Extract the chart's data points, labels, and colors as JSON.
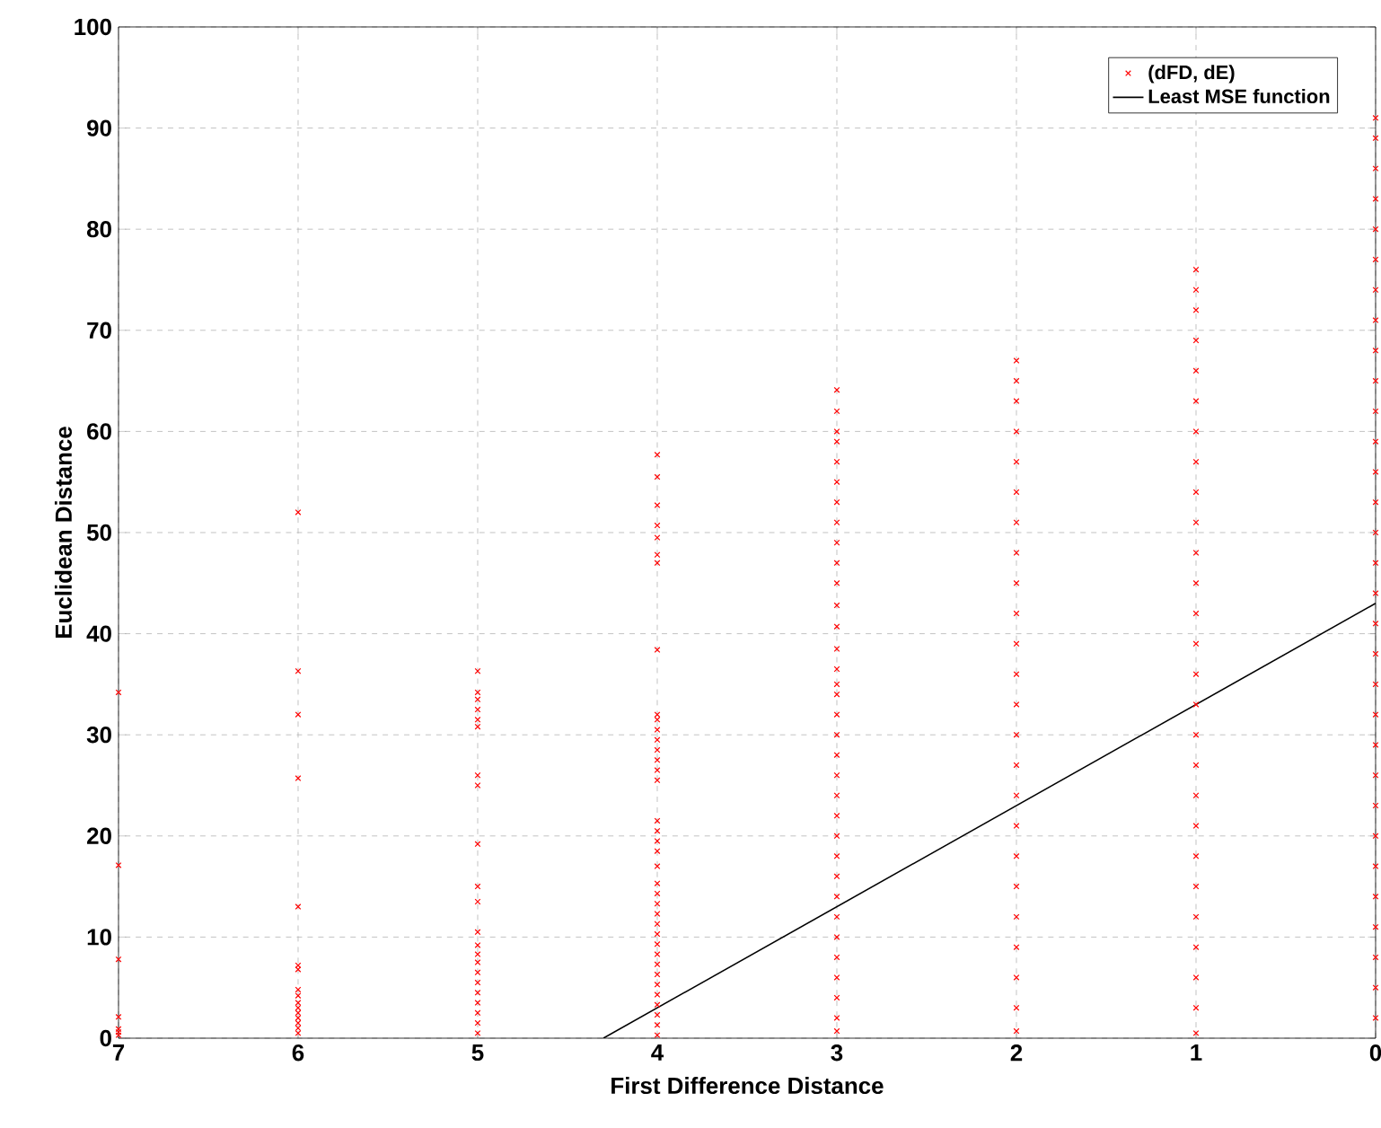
{
  "chart_data": {
    "type": "scatter",
    "xlabel": "First Difference Distance",
    "ylabel": "Euclidean Distance",
    "xlim": [
      7,
      0
    ],
    "ylim": [
      0,
      100
    ],
    "xticks": [
      7,
      6,
      5,
      4,
      3,
      2,
      1,
      0
    ],
    "yticks": [
      0,
      10,
      20,
      30,
      40,
      50,
      60,
      70,
      80,
      90,
      100
    ],
    "grid": true,
    "legend": "top right",
    "series": [
      {
        "name": "(dFD, dE)",
        "marker": "cross",
        "color": "#ff0000",
        "x": [
          7,
          7,
          7,
          7,
          7,
          7,
          7,
          6,
          6,
          6,
          6,
          6,
          6,
          6,
          6,
          6,
          6,
          6,
          6,
          6,
          6,
          6,
          6,
          5,
          5,
          5,
          5,
          5,
          5,
          5,
          5,
          5,
          5,
          5,
          5,
          5,
          5,
          5,
          5,
          5,
          5,
          5,
          5,
          5,
          5,
          4,
          4,
          4,
          4,
          4,
          4,
          4,
          4,
          4,
          4,
          4,
          4,
          4,
          4,
          4,
          4,
          4,
          4,
          4,
          4,
          4,
          4,
          4,
          4,
          4,
          4,
          4,
          4,
          4,
          4,
          4,
          4,
          4,
          4,
          4,
          4,
          4,
          3,
          3,
          3,
          3,
          3,
          3,
          3,
          3,
          3,
          3,
          3,
          3,
          3,
          3,
          3,
          3,
          3,
          3,
          3,
          3,
          3,
          3,
          3,
          3,
          3,
          3,
          3,
          3,
          3,
          3,
          3,
          3,
          3,
          3,
          2,
          2,
          2,
          2,
          2,
          2,
          2,
          2,
          2,
          2,
          2,
          2,
          2,
          2,
          2,
          2,
          2,
          2,
          2,
          2,
          2,
          2,
          2,
          2,
          1,
          1,
          1,
          1,
          1,
          1,
          1,
          1,
          1,
          1,
          1,
          1,
          1,
          1,
          1,
          1,
          1,
          1,
          1,
          1,
          1,
          1,
          1,
          1,
          1,
          1,
          1,
          0,
          0,
          0,
          0,
          0,
          0,
          0,
          0,
          0,
          0,
          0,
          0,
          0,
          0,
          0,
          0,
          0,
          0,
          0,
          0,
          0,
          0,
          0,
          0,
          0,
          0,
          0,
          0,
          0,
          0,
          0
        ],
        "values": [
          0.3,
          0.6,
          0.9,
          2.1,
          7.8,
          17.1,
          34.2,
          0.5,
          1,
          1.5,
          2,
          2.5,
          3,
          3.5,
          4.2,
          4.8,
          6.8,
          7.2,
          13,
          25.7,
          32,
          36.3,
          52,
          0.5,
          1.5,
          2.5,
          3.5,
          4.5,
          5.5,
          6.5,
          7.5,
          8.3,
          9.2,
          10.5,
          13.5,
          15,
          19.2,
          25,
          26,
          30.8,
          31.5,
          32.5,
          33.5,
          34.2,
          36.3,
          0.3,
          1.3,
          2.3,
          3.3,
          4.3,
          5.3,
          6.3,
          7.3,
          8.3,
          9.3,
          10.3,
          11.3,
          12.3,
          13.3,
          14.3,
          15.3,
          17,
          18.5,
          19.5,
          20.5,
          21.5,
          25.5,
          26.5,
          27.5,
          28.5,
          29.5,
          30.5,
          31.5,
          32,
          38.4,
          47,
          47.8,
          49.5,
          50.7,
          52.7,
          55.5,
          57.7,
          0.7,
          2,
          4,
          6,
          8,
          10,
          12,
          14,
          16,
          18,
          20,
          22,
          24,
          26,
          28,
          30,
          32,
          34,
          35,
          36.5,
          38.5,
          40.7,
          42.8,
          45,
          47,
          49,
          51,
          53,
          55,
          57,
          59,
          60,
          62,
          64.1,
          0.7,
          3,
          6,
          9,
          12,
          15,
          18,
          21,
          24,
          27,
          30,
          33,
          36,
          39,
          42,
          45,
          48,
          51,
          54,
          57,
          60,
          63,
          65,
          67,
          0.5,
          3,
          6,
          9,
          12,
          15,
          18,
          21,
          24,
          27,
          30,
          33,
          36,
          39,
          42,
          45,
          48,
          51,
          54,
          57,
          60,
          63,
          66,
          69,
          72,
          74,
          76,
          2,
          5,
          8,
          11,
          14,
          17,
          20,
          23,
          26,
          29,
          32,
          35,
          38,
          41,
          44,
          47,
          50,
          53,
          56,
          59,
          62,
          65,
          68,
          71,
          74,
          77,
          80,
          83,
          86,
          89,
          91
        ]
      },
      {
        "name": "Least MSE function",
        "type": "line",
        "marker": "none",
        "line_style": "solid",
        "color": "#000000",
        "x": [
          4.3,
          0
        ],
        "values": [
          0,
          43
        ]
      }
    ]
  }
}
